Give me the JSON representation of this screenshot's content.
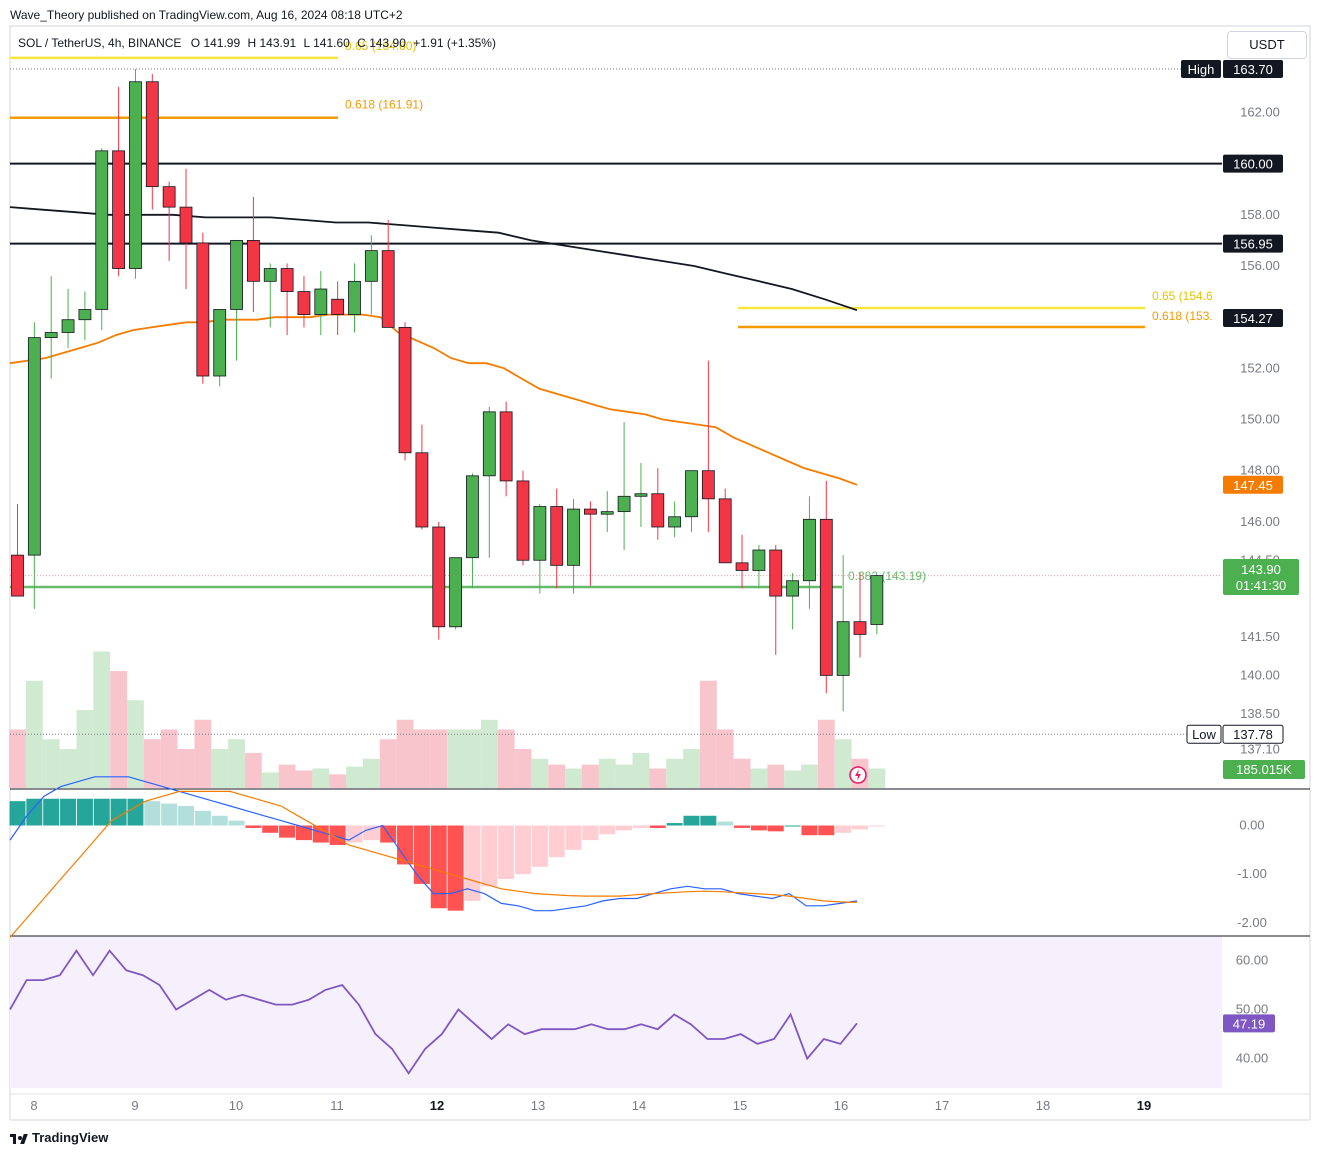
{
  "publisher": "Wave_Theory published on TradingView.com, Aug 16, 2024 08:18 UTC+2",
  "currency": "USDT",
  "footer_brand": "TradingView",
  "legend": {
    "symbol": "SOL / TetherUS, 4h, BINANCE",
    "o_label": "O",
    "o": "141.99",
    "h_label": "H",
    "h": "143.91",
    "l_label": "L",
    "l": "141.60",
    "c_label": "C",
    "c": "143.90",
    "change": "+1.91 (+1.35%)"
  },
  "colors": {
    "up": "#4caf50",
    "down": "#f23645",
    "volume_up": "#c8e6c9",
    "volume_down": "#f8bbc4",
    "ma_orange": "#f57c00",
    "ma_black": "#131722",
    "fib_065": "#f5e83a",
    "fib_0618": "#f59a00",
    "support_green": "#66bb6a",
    "macd_line": "#2962ff",
    "signal_line": "#f57c00",
    "rsi": "#7e57c2"
  },
  "chart_data": [
    {
      "type": "candlestick",
      "title": "SOL / TetherUS, 4h, BINANCE",
      "x_ticks": [
        "8",
        "9",
        "10",
        "11",
        "12",
        "13",
        "14",
        "15",
        "16",
        "17",
        "18",
        "19"
      ],
      "y_ticks": [
        "162.00",
        "160.00",
        "158.00",
        "156.00",
        "152.00",
        "150.00",
        "148.00",
        "146.00",
        "144.50",
        "141.50",
        "140.00",
        "138.50",
        "137.10"
      ],
      "price_range": [
        135.6,
        165.3
      ],
      "candles": [
        {
          "o": 144.7,
          "h": 146.7,
          "l": 143.1,
          "c": 143.1
        },
        {
          "o": 144.7,
          "h": 153.8,
          "l": 142.6,
          "c": 153.2
        },
        {
          "o": 153.2,
          "h": 155.6,
          "l": 151.6,
          "c": 153.4
        },
        {
          "o": 153.4,
          "h": 155.1,
          "l": 152.8,
          "c": 153.9
        },
        {
          "o": 153.9,
          "h": 155.0,
          "l": 153.1,
          "c": 154.3
        },
        {
          "o": 154.3,
          "h": 160.6,
          "l": 153.5,
          "c": 160.5
        },
        {
          "o": 160.5,
          "h": 163.0,
          "l": 155.6,
          "c": 155.9
        },
        {
          "o": 155.9,
          "h": 163.7,
          "l": 155.5,
          "c": 163.2
        },
        {
          "o": 163.2,
          "h": 163.5,
          "l": 158.2,
          "c": 159.1
        },
        {
          "o": 159.1,
          "h": 159.3,
          "l": 156.2,
          "c": 158.3
        },
        {
          "o": 158.3,
          "h": 159.8,
          "l": 155.1,
          "c": 156.9
        },
        {
          "o": 156.9,
          "h": 157.3,
          "l": 151.4,
          "c": 151.7
        },
        {
          "o": 151.7,
          "h": 154.1,
          "l": 151.3,
          "c": 154.3
        },
        {
          "o": 154.3,
          "h": 157.0,
          "l": 152.3,
          "c": 157.0
        },
        {
          "o": 157.0,
          "h": 158.7,
          "l": 154.2,
          "c": 155.4
        },
        {
          "o": 155.4,
          "h": 156.1,
          "l": 153.6,
          "c": 155.9
        },
        {
          "o": 155.9,
          "h": 156.1,
          "l": 153.3,
          "c": 155.0
        },
        {
          "o": 155.0,
          "h": 155.6,
          "l": 153.6,
          "c": 154.1
        },
        {
          "o": 154.1,
          "h": 155.8,
          "l": 153.3,
          "c": 155.1
        },
        {
          "o": 154.7,
          "h": 155.4,
          "l": 153.3,
          "c": 154.1
        },
        {
          "o": 154.1,
          "h": 156.1,
          "l": 153.4,
          "c": 155.4
        },
        {
          "o": 155.4,
          "h": 157.2,
          "l": 154.1,
          "c": 156.6
        },
        {
          "o": 156.6,
          "h": 157.8,
          "l": 153.6,
          "c": 153.6
        },
        {
          "o": 153.6,
          "h": 153.8,
          "l": 148.4,
          "c": 148.7
        },
        {
          "o": 148.7,
          "h": 149.8,
          "l": 145.7,
          "c": 145.8
        },
        {
          "o": 145.8,
          "h": 146.0,
          "l": 141.4,
          "c": 141.9
        },
        {
          "o": 141.9,
          "h": 144.6,
          "l": 141.8,
          "c": 144.6
        },
        {
          "o": 144.6,
          "h": 147.9,
          "l": 143.4,
          "c": 147.8
        },
        {
          "o": 147.8,
          "h": 150.5,
          "l": 144.6,
          "c": 150.3
        },
        {
          "o": 150.3,
          "h": 150.7,
          "l": 147.0,
          "c": 147.6
        },
        {
          "o": 147.6,
          "h": 148.0,
          "l": 144.3,
          "c": 144.5
        },
        {
          "o": 144.5,
          "h": 146.7,
          "l": 143.2,
          "c": 146.6
        },
        {
          "o": 146.6,
          "h": 147.3,
          "l": 143.4,
          "c": 144.3
        },
        {
          "o": 144.3,
          "h": 146.9,
          "l": 143.2,
          "c": 146.5
        },
        {
          "o": 146.5,
          "h": 146.8,
          "l": 143.5,
          "c": 146.3
        },
        {
          "o": 146.3,
          "h": 147.2,
          "l": 145.6,
          "c": 146.4
        },
        {
          "o": 146.4,
          "h": 149.9,
          "l": 144.9,
          "c": 147.0
        },
        {
          "o": 147.0,
          "h": 148.3,
          "l": 145.8,
          "c": 147.1
        },
        {
          "o": 147.1,
          "h": 148.1,
          "l": 145.3,
          "c": 145.8
        },
        {
          "o": 145.8,
          "h": 146.8,
          "l": 145.4,
          "c": 146.2
        },
        {
          "o": 146.2,
          "h": 148.0,
          "l": 145.6,
          "c": 148.0
        },
        {
          "o": 148.0,
          "h": 152.3,
          "l": 145.6,
          "c": 146.9
        },
        {
          "o": 146.9,
          "h": 147.3,
          "l": 144.4,
          "c": 144.4
        },
        {
          "o": 144.4,
          "h": 145.5,
          "l": 143.4,
          "c": 144.1
        },
        {
          "o": 144.1,
          "h": 145.1,
          "l": 143.4,
          "c": 144.9
        },
        {
          "o": 144.9,
          "h": 145.1,
          "l": 140.8,
          "c": 143.1
        },
        {
          "o": 143.1,
          "h": 144.0,
          "l": 141.8,
          "c": 143.7
        },
        {
          "o": 143.7,
          "h": 147.0,
          "l": 142.6,
          "c": 146.1
        },
        {
          "o": 146.1,
          "h": 147.6,
          "l": 139.3,
          "c": 140.0
        },
        {
          "o": 140.0,
          "h": 144.7,
          "l": 138.6,
          "c": 142.1
        },
        {
          "o": 142.1,
          "h": 144.0,
          "l": 140.7,
          "c": 141.6
        },
        {
          "o": 141.99,
          "h": 143.91,
          "l": 141.6,
          "c": 143.9
        }
      ],
      "ma_orange": [
        152.2,
        152.3,
        152.4,
        152.6,
        152.8,
        153.0,
        153.3,
        153.5,
        153.6,
        153.7,
        153.8,
        153.8,
        153.9,
        153.9,
        153.9,
        154.0,
        154.0,
        154.0,
        154.1,
        154.1,
        154.1,
        154.0,
        153.4,
        153.1,
        152.8,
        152.4,
        152.2,
        152.2,
        152.0,
        151.6,
        151.2,
        151.0,
        150.8,
        150.6,
        150.4,
        150.3,
        150.2,
        150.0,
        149.9,
        149.8,
        149.7,
        149.3,
        149.0,
        148.7,
        148.4,
        148.1,
        147.9,
        147.7,
        147.45
      ],
      "ma_black": [
        158.3,
        158.2,
        158.1,
        158.0,
        158.0,
        158.0,
        157.9,
        157.9,
        157.9,
        157.8,
        157.7,
        157.7,
        157.6,
        157.5,
        157.4,
        157.3,
        157.0,
        156.8,
        156.6,
        156.4,
        156.2,
        156.0,
        155.7,
        155.4,
        155.1,
        154.7,
        154.27
      ],
      "horizontal_levels": [
        {
          "label": "High",
          "value": "163.70"
        },
        {
          "label": "",
          "value": "160.00"
        },
        {
          "label": "",
          "value": "156.95"
        },
        {
          "label": "",
          "value": "154.27"
        },
        {
          "label": "",
          "value": "147.45"
        },
        {
          "label": "Low",
          "value": "137.78"
        }
      ],
      "fib_labels": {
        "left_065": "0.65 (164.60)",
        "left_0618": "0.618 (161.91)",
        "right_065": "0.65 (154.6",
        "right_0618": "0.618 (153.",
        "support": "0.382 (143.19)"
      },
      "current_price": "143.90",
      "countdown": "01:41:30",
      "volume_label": "185.015K",
      "volume": [
        0.3,
        0.55,
        0.25,
        0.2,
        0.4,
        0.7,
        0.6,
        0.45,
        0.25,
        0.3,
        0.2,
        0.35,
        0.2,
        0.25,
        0.18,
        0.08,
        0.12,
        0.09,
        0.1,
        0.07,
        0.11,
        0.15,
        0.25,
        0.35,
        0.3,
        0.3,
        0.3,
        0.3,
        0.35,
        0.3,
        0.2,
        0.15,
        0.12,
        0.1,
        0.12,
        0.15,
        0.12,
        0.18,
        0.1,
        0.15,
        0.2,
        0.55,
        0.3,
        0.15,
        0.1,
        0.12,
        0.09,
        0.12,
        0.35,
        0.25,
        0.15,
        0.1
      ]
    },
    {
      "type": "bar",
      "title": "MACD",
      "y_ticks": [
        "0.00",
        "-1.00",
        "-2.00"
      ],
      "ylim": [
        -2.25,
        0.75
      ],
      "histogram": [
        0.5,
        0.55,
        0.55,
        0.55,
        0.55,
        0.55,
        0.55,
        0.55,
        0.5,
        0.45,
        0.4,
        0.3,
        0.2,
        0.1,
        -0.05,
        -0.15,
        -0.25,
        -0.3,
        -0.35,
        -0.4,
        -0.35,
        -0.3,
        -0.35,
        -0.8,
        -1.2,
        -1.7,
        -1.75,
        -1.55,
        -1.25,
        -1.1,
        -1.0,
        -0.85,
        -0.65,
        -0.5,
        -0.3,
        -0.18,
        -0.1,
        -0.05,
        -0.05,
        0.05,
        0.2,
        0.2,
        0.08,
        -0.05,
        -0.1,
        -0.12,
        0.0,
        -0.2,
        -0.2,
        -0.15,
        -0.08,
        -0.02
      ],
      "macd_line": [
        -0.3,
        0.2,
        0.6,
        0.8,
        0.9,
        1.0,
        1.0,
        1.0,
        0.9,
        0.8,
        0.7,
        0.6,
        0.5,
        0.4,
        0.3,
        0.2,
        0.1,
        0.0,
        -0.1,
        -0.2,
        -0.3,
        -0.1,
        0.0,
        -0.5,
        -1.0,
        -1.4,
        -1.4,
        -1.3,
        -1.4,
        -1.6,
        -1.65,
        -1.75,
        -1.75,
        -1.7,
        -1.65,
        -1.55,
        -1.5,
        -1.5,
        -1.4,
        -1.3,
        -1.25,
        -1.3,
        -1.3,
        -1.4,
        -1.45,
        -1.5,
        -1.4,
        -1.65,
        -1.65,
        -1.6,
        -1.55
      ],
      "signal_line": [
        -2.3,
        -1.9,
        -1.5,
        -1.1,
        -0.7,
        -0.3,
        0.1,
        0.3,
        0.5,
        0.6,
        0.7,
        0.7,
        0.7,
        0.7,
        0.6,
        0.5,
        0.4,
        0.2,
        0.0,
        -0.2,
        -0.4,
        -0.5,
        -0.6,
        -0.7,
        -0.8,
        -0.9,
        -1.0,
        -1.1,
        -1.2,
        -1.3,
        -1.35,
        -1.4,
        -1.42,
        -1.44,
        -1.45,
        -1.45,
        -1.45,
        -1.42,
        -1.4,
        -1.38,
        -1.36,
        -1.35,
        -1.36,
        -1.38,
        -1.4,
        -1.42,
        -1.45,
        -1.5,
        -1.55,
        -1.57,
        -1.58
      ]
    },
    {
      "type": "line",
      "title": "RSI",
      "y_ticks": [
        "60.00",
        "50.00",
        "40.00"
      ],
      "ylim": [
        34,
        65
      ],
      "value_label": "47.19",
      "values": [
        50,
        56,
        56,
        57,
        62,
        57,
        62,
        58,
        57,
        55,
        50,
        52,
        54,
        52,
        53,
        52,
        51,
        51,
        52,
        54,
        55,
        51,
        45,
        42,
        37,
        42,
        45,
        50,
        47,
        44,
        47,
        45,
        46,
        46,
        46,
        47,
        46,
        46,
        47,
        46,
        49,
        47,
        44,
        44,
        45,
        43,
        44,
        49,
        40,
        44,
        43,
        47.19
      ]
    }
  ]
}
